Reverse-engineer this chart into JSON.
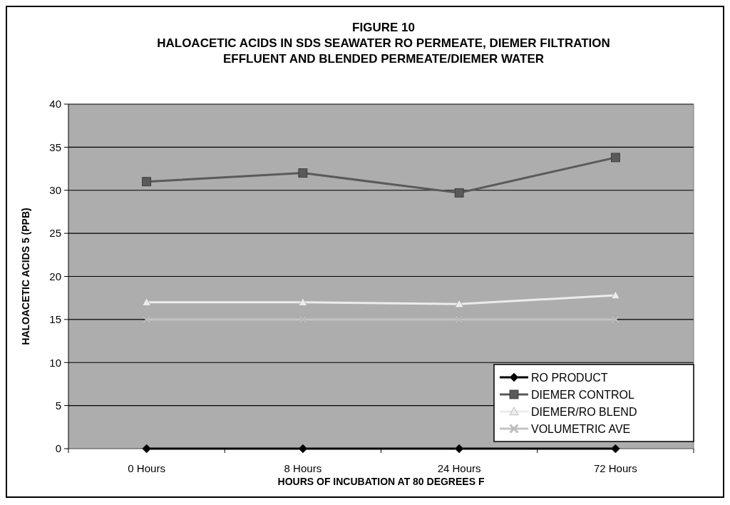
{
  "chart_data": {
    "type": "line",
    "title": "FIGURE 10\nHALOACETIC ACIDS IN SDS SEAWATER RO PERMEATE, DIEMER FILTRATION\nEFFLUENT AND BLENDED PERMEATE/DIEMER WATER",
    "xlabel": "HOURS OF INCUBATION AT 80 DEGREES F",
    "ylabel": "HALOACETIC ACIDS 5 (PPB)",
    "categories": [
      "0  Hours",
      "8  Hours",
      "24  Hours",
      "72  Hours"
    ],
    "series": [
      {
        "name": "RO PRODUCT",
        "color": "#000000",
        "marker": "diamond",
        "values": [
          0,
          0,
          0,
          0
        ]
      },
      {
        "name": "DIEMER CONTROL",
        "color": "#5a5a5a",
        "marker": "square",
        "values": [
          31,
          32,
          29.7,
          33.8
        ]
      },
      {
        "name": "DIEMER/RO BLEND",
        "color": "#ececec",
        "marker": "triangle",
        "values": [
          17,
          17,
          16.8,
          17.8
        ]
      },
      {
        "name": "VOLUMETRIC AVE",
        "color": "#c4c4c4",
        "marker": "cross",
        "values": [
          15,
          15,
          15,
          15
        ]
      }
    ],
    "ylim": [
      0,
      40
    ],
    "yticks": [
      0,
      5,
      10,
      15,
      20,
      25,
      30,
      35,
      40
    ],
    "grid": "y",
    "legend": "bottom right"
  }
}
